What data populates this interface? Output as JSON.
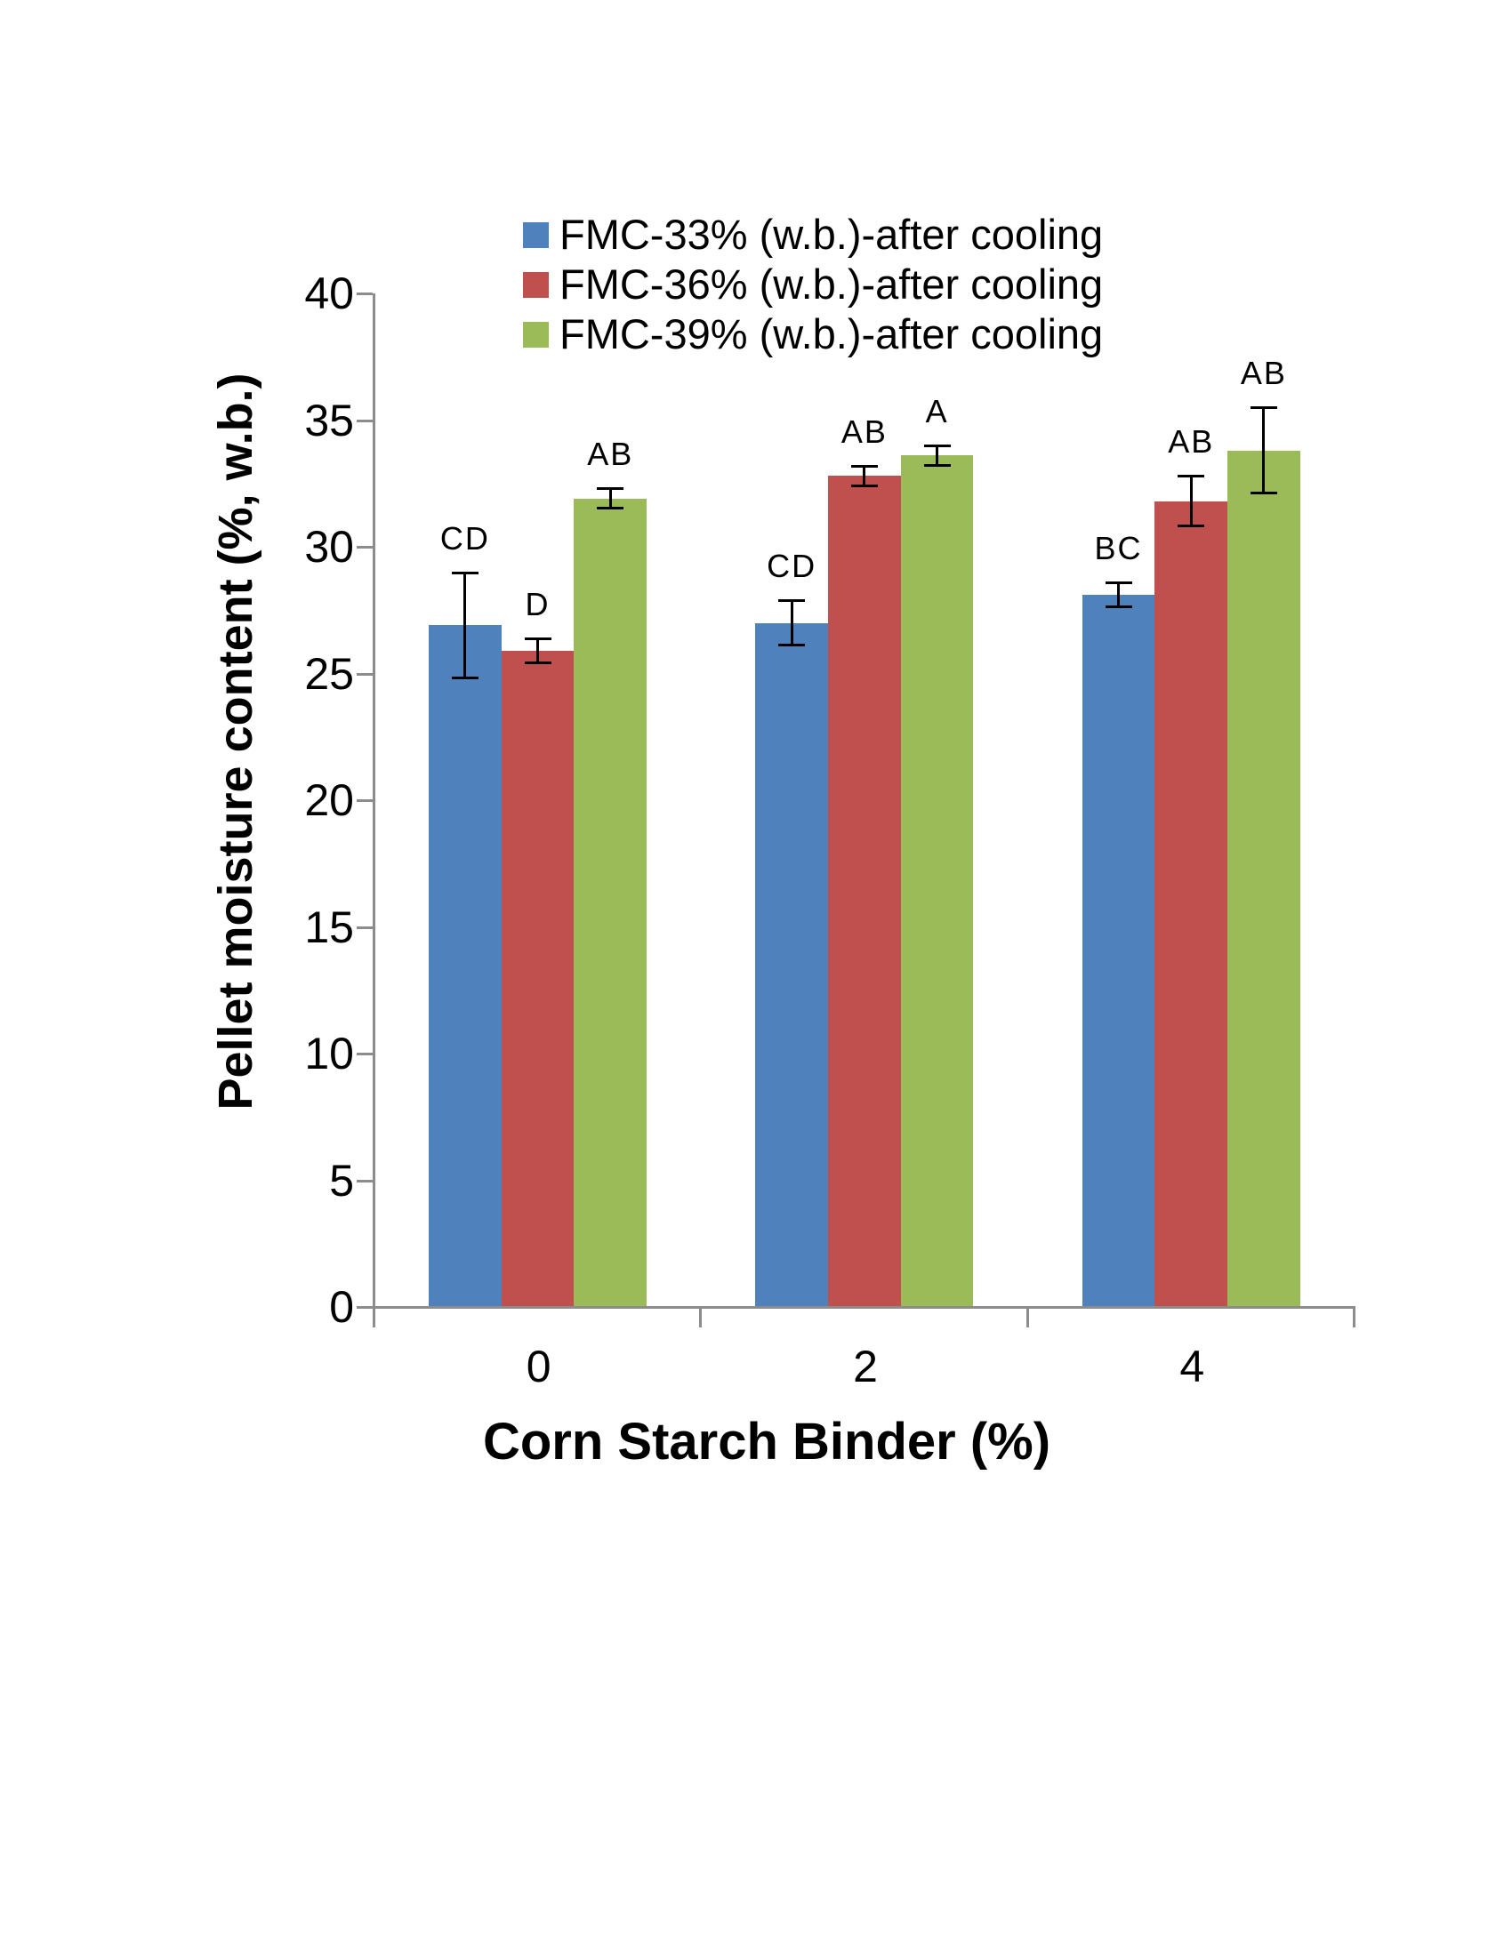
{
  "chart_data": {
    "type": "bar",
    "title": "",
    "xlabel": "Corn Starch Binder (%)",
    "ylabel": "Pellet moisture content (%, w.b.)",
    "ylim": [
      0,
      40
    ],
    "yticks": [
      0,
      5,
      10,
      15,
      20,
      25,
      30,
      35,
      40
    ],
    "categories": [
      "0",
      "2",
      "4"
    ],
    "series": [
      {
        "name": "FMC-33% (w.b.)-after cooling",
        "color": "#4F81BD",
        "values": [
          26.9,
          27.0,
          28.1
        ],
        "errors": [
          2.1,
          0.9,
          0.5
        ],
        "sig_labels": [
          "CD",
          "CD",
          "BC"
        ]
      },
      {
        "name": "FMC-36% (w.b.)-after cooling",
        "color": "#C0504D",
        "values": [
          25.9,
          32.8,
          31.8
        ],
        "errors": [
          0.5,
          0.4,
          1.0
        ],
        "sig_labels": [
          "D",
          "AB",
          "AB"
        ]
      },
      {
        "name": "FMC-39% (w.b.)-after cooling",
        "color": "#9BBB59",
        "values": [
          31.9,
          33.6,
          33.8
        ],
        "errors": [
          0.4,
          0.4,
          1.7
        ],
        "sig_labels": [
          "AB",
          "A",
          "AB"
        ]
      }
    ],
    "legend_position": "top",
    "grid": false,
    "axis_color": "#8C8C8C",
    "error_bar_color": "#000000",
    "text_color": "#000000",
    "background_color": "#FFFFFF"
  }
}
